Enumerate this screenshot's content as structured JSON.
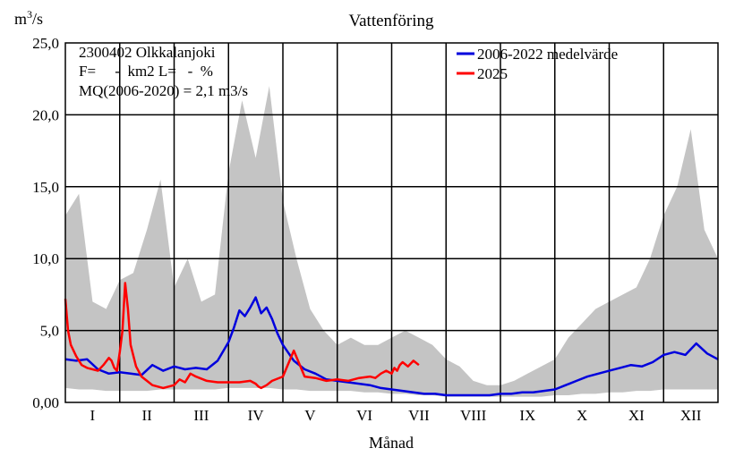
{
  "chart_data": {
    "type": "line",
    "title": "Vattenföring",
    "ylabel_base": "m",
    "ylabel_sup": "3",
    "ylabel_tail": "/s",
    "xlabel": "Månad",
    "ylim": [
      0,
      25
    ],
    "xlim": [
      0,
      12
    ],
    "yticks": [
      "0,00",
      "5,0",
      "10,0",
      "15,0",
      "20,0",
      "25,0"
    ],
    "ytick_values": [
      0,
      5,
      10,
      15,
      20,
      25
    ],
    "month_labels": [
      "I",
      "II",
      "III",
      "IV",
      "V",
      "VI",
      "VII",
      "VIII",
      "IX",
      "X",
      "XI",
      "XII"
    ],
    "grid": true,
    "info": {
      "station": "2300402 Olkkalanjoki",
      "area": "F=     -  km2 L=   -  %",
      "mq": "MQ(2006-2020) = 2,1 m3/s"
    },
    "legend_position": "top-right",
    "series": [
      {
        "name": "2006-2022 medelvärde",
        "color": "#0000dd",
        "x": [
          0,
          0.2,
          0.4,
          0.6,
          0.8,
          1.0,
          1.2,
          1.4,
          1.6,
          1.8,
          2.0,
          2.2,
          2.4,
          2.6,
          2.8,
          3.0,
          3.1,
          3.2,
          3.3,
          3.4,
          3.5,
          3.6,
          3.7,
          3.8,
          3.9,
          4.0,
          4.2,
          4.4,
          4.6,
          4.8,
          5.0,
          5.2,
          5.4,
          5.6,
          5.8,
          6.0,
          6.2,
          6.4,
          6.6,
          6.8,
          7.0,
          7.2,
          7.4,
          7.6,
          7.8,
          8.0,
          8.2,
          8.4,
          8.6,
          8.8,
          9.0,
          9.2,
          9.4,
          9.6,
          9.8,
          10.0,
          10.2,
          10.4,
          10.6,
          10.8,
          11.0,
          11.1,
          11.2,
          11.4,
          11.6,
          11.8,
          12.0
        ],
        "y": [
          3.0,
          2.9,
          3.0,
          2.3,
          2.0,
          2.1,
          2.0,
          1.9,
          2.6,
          2.2,
          2.5,
          2.3,
          2.4,
          2.3,
          2.9,
          4.2,
          5.2,
          6.4,
          6.0,
          6.6,
          7.3,
          6.2,
          6.6,
          5.8,
          4.8,
          4.0,
          2.9,
          2.3,
          2.0,
          1.6,
          1.5,
          1.4,
          1.3,
          1.2,
          1.0,
          0.9,
          0.8,
          0.7,
          0.6,
          0.6,
          0.5,
          0.5,
          0.5,
          0.5,
          0.5,
          0.6,
          0.6,
          0.7,
          0.7,
          0.8,
          0.9,
          1.2,
          1.5,
          1.8,
          2.0,
          2.2,
          2.4,
          2.6,
          2.5,
          2.8,
          3.3,
          3.4,
          3.5,
          3.3,
          4.1,
          3.4,
          3.0
        ]
      },
      {
        "name": "2025",
        "color": "#ff0000",
        "x": [
          0,
          0.05,
          0.1,
          0.2,
          0.3,
          0.4,
          0.5,
          0.6,
          0.7,
          0.8,
          0.85,
          0.9,
          0.95,
          1.0,
          1.05,
          1.1,
          1.15,
          1.2,
          1.3,
          1.4,
          1.5,
          1.6,
          1.8,
          2.0,
          2.1,
          2.2,
          2.3,
          2.4,
          2.6,
          2.8,
          3.0,
          3.2,
          3.4,
          3.5,
          3.55,
          3.6,
          3.65,
          3.7,
          3.8,
          4.0,
          4.2,
          4.4,
          4.6,
          4.8,
          5.0,
          5.2,
          5.4,
          5.6,
          5.7,
          5.8,
          5.9,
          6.0,
          6.05,
          6.1,
          6.15,
          6.2,
          6.3,
          6.4,
          6.5
        ],
        "y": [
          7.2,
          5.0,
          4.0,
          3.2,
          2.6,
          2.4,
          2.3,
          2.2,
          2.6,
          3.1,
          2.9,
          2.4,
          2.2,
          3.5,
          5.0,
          8.3,
          6.5,
          4.0,
          2.5,
          1.8,
          1.5,
          1.2,
          1.0,
          1.2,
          1.6,
          1.4,
          2.0,
          1.8,
          1.5,
          1.4,
          1.4,
          1.4,
          1.5,
          1.3,
          1.1,
          1.0,
          1.1,
          1.2,
          1.5,
          1.8,
          3.6,
          1.8,
          1.7,
          1.5,
          1.6,
          1.5,
          1.7,
          1.8,
          1.7,
          2.0,
          2.2,
          2.0,
          2.4,
          2.2,
          2.6,
          2.8,
          2.5,
          2.9,
          2.6
        ]
      }
    ],
    "range_band": {
      "color": "#c4c4c4",
      "x": [
        0,
        0.25,
        0.5,
        0.75,
        1.0,
        1.25,
        1.5,
        1.75,
        2.0,
        2.25,
        2.5,
        2.75,
        3.0,
        3.25,
        3.5,
        3.75,
        4.0,
        4.25,
        4.5,
        4.75,
        5.0,
        5.25,
        5.5,
        5.75,
        6.0,
        6.25,
        6.5,
        6.75,
        7.0,
        7.25,
        7.5,
        7.75,
        8.0,
        8.25,
        8.5,
        8.75,
        9.0,
        9.25,
        9.5,
        9.75,
        10.0,
        10.25,
        10.5,
        10.75,
        11.0,
        11.25,
        11.5,
        11.75,
        12.0
      ],
      "max": [
        13.0,
        14.5,
        7.0,
        6.5,
        8.5,
        9.0,
        12.0,
        15.5,
        8.0,
        10.0,
        7.0,
        7.5,
        16.0,
        21.0,
        17.0,
        22.0,
        14.0,
        10.0,
        6.5,
        5.0,
        4.0,
        4.5,
        4.0,
        4.0,
        4.5,
        5.0,
        4.5,
        4.0,
        3.0,
        2.5,
        1.5,
        1.2,
        1.2,
        1.5,
        2.0,
        2.5,
        3.0,
        4.5,
        5.5,
        6.5,
        7.0,
        7.5,
        8.0,
        10.0,
        13.0,
        15.0,
        19.0,
        12.0,
        10.0
      ],
      "min": [
        1.0,
        0.9,
        0.9,
        0.8,
        0.8,
        0.8,
        0.8,
        0.9,
        0.9,
        0.9,
        0.9,
        0.9,
        1.0,
        1.0,
        1.0,
        1.0,
        0.9,
        0.9,
        0.8,
        0.8,
        0.8,
        0.8,
        0.7,
        0.7,
        0.6,
        0.6,
        0.5,
        0.5,
        0.4,
        0.4,
        0.4,
        0.4,
        0.4,
        0.4,
        0.4,
        0.4,
        0.5,
        0.5,
        0.6,
        0.6,
        0.7,
        0.7,
        0.8,
        0.8,
        0.9,
        0.9,
        0.9,
        0.9,
        0.9
      ]
    }
  }
}
